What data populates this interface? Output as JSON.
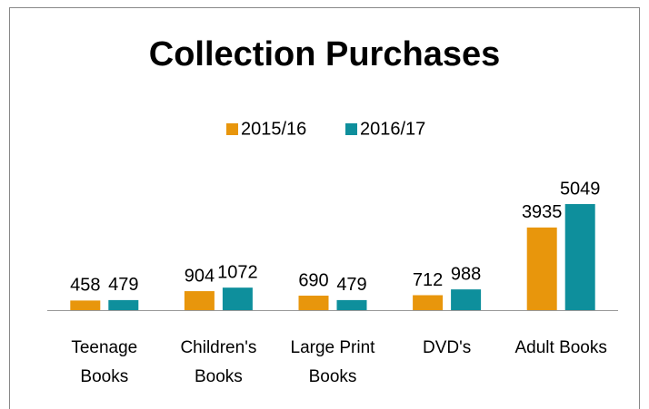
{
  "chart_data": {
    "type": "bar",
    "title": "Collection Purchases",
    "categories": [
      "Teenage Books",
      "Children's Books",
      "Large Print Books",
      "DVD's",
      "Adult Books"
    ],
    "series": [
      {
        "name": "2015/16",
        "color": "#e8960c",
        "values": [
          458,
          904,
          690,
          712,
          3935
        ]
      },
      {
        "name": "2016/17",
        "color": "#0e8f9c",
        "values": [
          479,
          1072,
          479,
          988,
          5049
        ]
      }
    ],
    "ylim": [
      0,
      6000
    ],
    "legend": "top"
  }
}
